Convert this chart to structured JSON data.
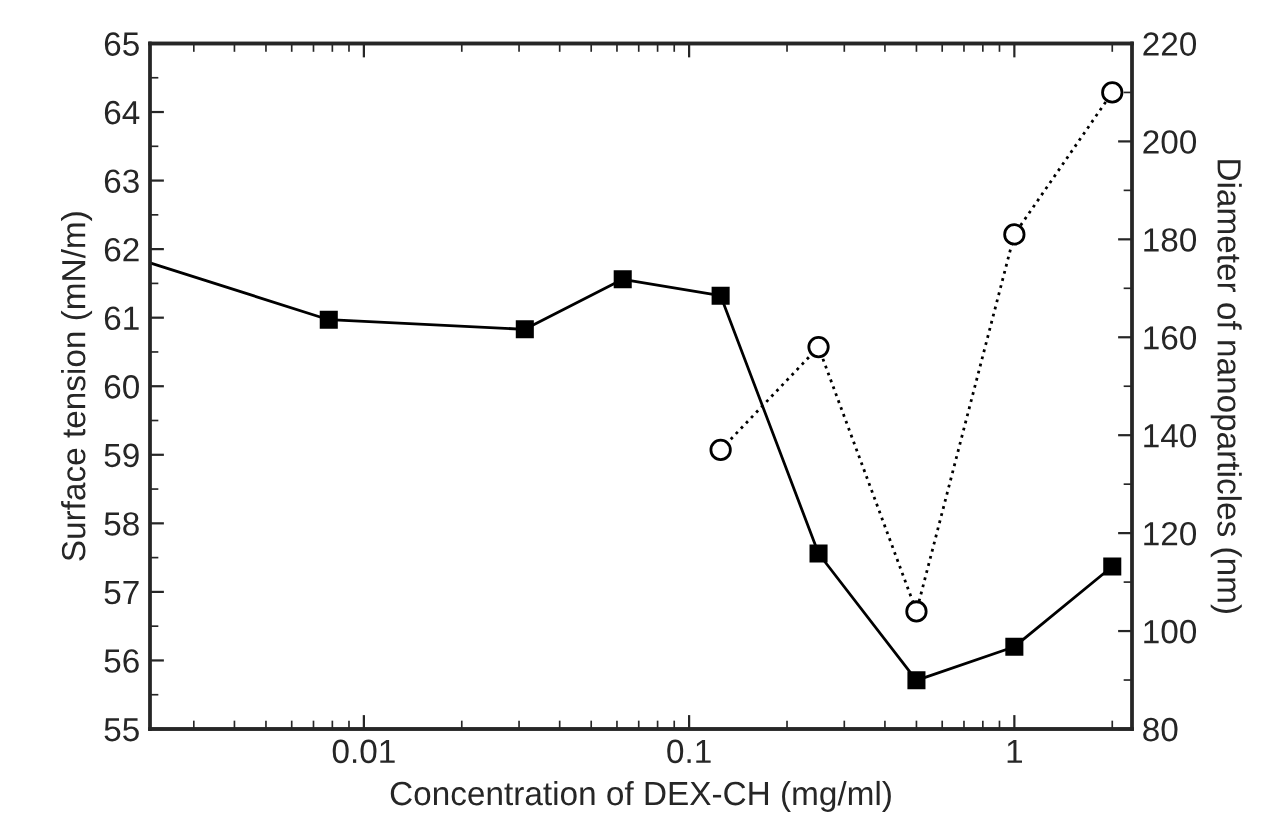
{
  "chart_data": {
    "type": "line",
    "xlabel": "Concentration of DEX-CH (mg/ml)",
    "ylabel": "Surface tension (mN/m)",
    "y2label": "Diameter of nanoparticles (nm)",
    "log": "x",
    "xlim": [
      0.0022,
      2.3
    ],
    "xticks": [
      0.01,
      0.1,
      1
    ],
    "ylim": [
      55,
      65
    ],
    "yticks": [
      55,
      56,
      57,
      58,
      59,
      60,
      61,
      62,
      63,
      64,
      65
    ],
    "y2lim": [
      80,
      220
    ],
    "y2ticks": [
      80,
      100,
      120,
      140,
      160,
      180,
      200,
      220
    ],
    "grid": false,
    "legend": false,
    "series": [
      {
        "color": "#000000",
        "marker": "square",
        "line_style": "solid",
        "x": [
          0.0022,
          0.0078,
          0.03125,
          0.0625,
          0.125,
          0.25,
          0.5,
          1,
          2
        ],
        "values": [
          61.8,
          60.97,
          60.83,
          61.56,
          61.32,
          57.56,
          55.71,
          56.2,
          57.37
        ]
      },
      {
        "color": "#000000",
        "marker": "circle",
        "line_style": "dotted",
        "axis": "y2",
        "x": [
          0.125,
          0.25,
          0.5,
          1,
          2
        ],
        "values": [
          137,
          158,
          104,
          181,
          210
        ]
      }
    ]
  }
}
